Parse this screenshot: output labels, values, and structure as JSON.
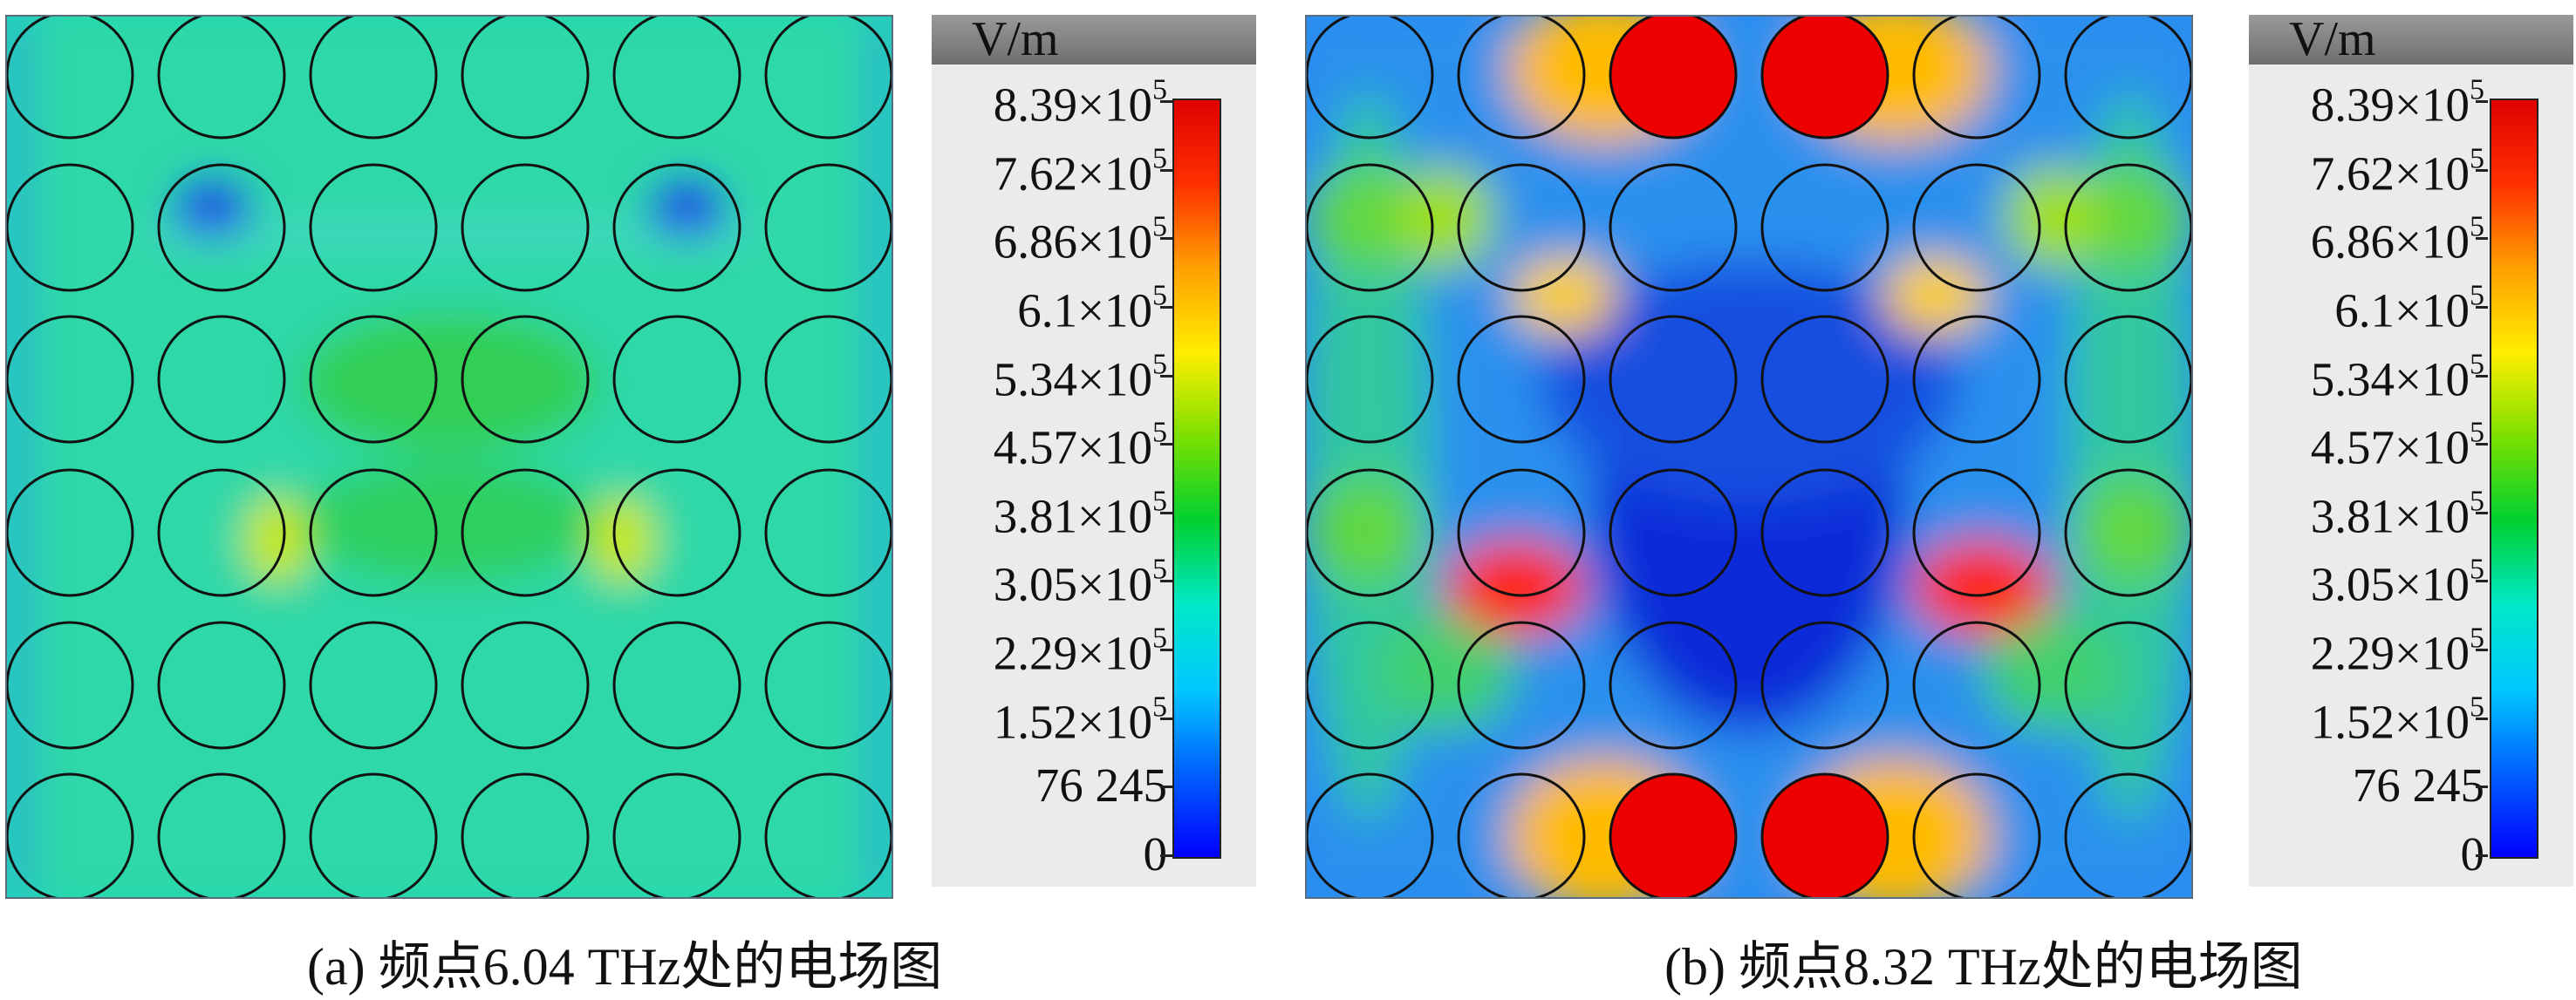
{
  "colorbar": {
    "unit": "V/m",
    "tick_labels": [
      {
        "mant": "8.39",
        "exp": "5"
      },
      {
        "mant": "7.62",
        "exp": "5"
      },
      {
        "mant": "6.86",
        "exp": "5"
      },
      {
        "mant": "6.1",
        "exp": "5"
      },
      {
        "mant": "5.34",
        "exp": "5"
      },
      {
        "mant": "4.57",
        "exp": "5"
      },
      {
        "mant": "3.81",
        "exp": "5"
      },
      {
        "mant": "3.05",
        "exp": "5"
      },
      {
        "mant": "2.29",
        "exp": "5"
      },
      {
        "mant": "1.52",
        "exp": "5"
      },
      {
        "mant": "76 245",
        "exp": ""
      },
      {
        "mant": "0",
        "exp": ""
      }
    ],
    "times_sign": "×10",
    "colors": [
      "#0000ff",
      "#0060ff",
      "#00c8ff",
      "#00e8c8",
      "#00d030",
      "#7ce000",
      "#ffee00",
      "#ffa000",
      "#ff3000",
      "#e00000"
    ]
  },
  "panels": [
    {
      "caption": "(a) 频点6.04 THz处的电场图",
      "frequency": "6.04 THz"
    },
    {
      "caption": "(b) 频点8.32 THz处的电场图",
      "frequency": "8.32 THz"
    }
  ]
}
